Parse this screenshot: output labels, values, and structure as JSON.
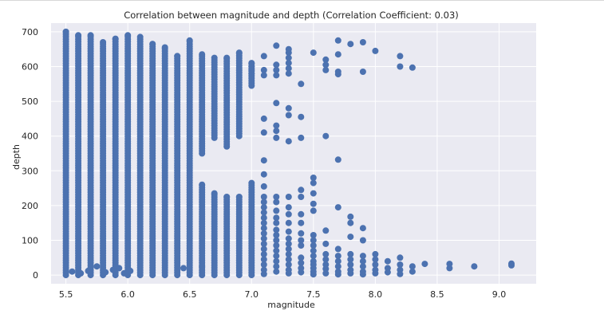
{
  "chart_data": {
    "type": "scatter",
    "title": "Correlation between magnitude and depth (Correlation Coefficient: 0.03)",
    "xlabel": "magnitude",
    "ylabel": "depth",
    "xlim": [
      5.38,
      9.3
    ],
    "ylim": [
      -25,
      725
    ],
    "x_ticks": [
      5.5,
      6.0,
      6.5,
      7.0,
      7.5,
      8.0,
      8.5,
      9.0
    ],
    "x_tick_labels": [
      "5.5",
      "6.0",
      "6.5",
      "7.0",
      "7.5",
      "8.0",
      "8.5",
      "9.0"
    ],
    "y_ticks": [
      0,
      100,
      200,
      300,
      400,
      500,
      600,
      700
    ],
    "y_tick_labels": [
      "0",
      "100",
      "200",
      "300",
      "400",
      "500",
      "600",
      "700"
    ],
    "grid": true,
    "marker_color": "#4c72b0",
    "background_color": "#eaeaf2",
    "grid_color": "#ffffff",
    "columns": [
      {
        "x": 5.5,
        "ranges": [
          [
            0,
            700
          ]
        ]
      },
      {
        "x": 5.6,
        "ranges": [
          [
            0,
            690
          ]
        ]
      },
      {
        "x": 5.7,
        "ranges": [
          [
            0,
            690
          ]
        ]
      },
      {
        "x": 5.8,
        "ranges": [
          [
            0,
            670
          ]
        ]
      },
      {
        "x": 5.9,
        "ranges": [
          [
            0,
            680
          ]
        ]
      },
      {
        "x": 6.0,
        "ranges": [
          [
            0,
            690
          ]
        ]
      },
      {
        "x": 6.1,
        "ranges": [
          [
            0,
            685
          ]
        ]
      },
      {
        "x": 6.2,
        "ranges": [
          [
            0,
            665
          ]
        ]
      },
      {
        "x": 6.3,
        "ranges": [
          [
            0,
            655
          ]
        ]
      },
      {
        "x": 6.4,
        "ranges": [
          [
            0,
            630
          ]
        ]
      },
      {
        "x": 6.5,
        "ranges": [
          [
            0,
            675
          ]
        ]
      },
      {
        "x": 6.6,
        "ranges": [
          [
            0,
            260
          ],
          [
            350,
            635
          ]
        ]
      },
      {
        "x": 6.7,
        "ranges": [
          [
            0,
            235
          ],
          [
            395,
            625
          ]
        ]
      },
      {
        "x": 6.8,
        "ranges": [
          [
            0,
            225
          ],
          [
            370,
            625
          ]
        ]
      },
      {
        "x": 6.9,
        "ranges": [
          [
            0,
            225
          ],
          [
            400,
            640
          ]
        ]
      },
      {
        "x": 7.0,
        "ranges": [
          [
            0,
            265
          ],
          [
            545,
            610
          ]
        ]
      }
    ],
    "points": [
      [
        5.55,
        10
      ],
      [
        5.62,
        5
      ],
      [
        5.68,
        12
      ],
      [
        5.75,
        25
      ],
      [
        5.82,
        8
      ],
      [
        5.88,
        15
      ],
      [
        5.93,
        20
      ],
      [
        5.97,
        5
      ],
      [
        6.02,
        12
      ],
      [
        6.45,
        20
      ],
      [
        6.6,
        25
      ],
      [
        7.0,
        600
      ],
      [
        7.0,
        590
      ],
      [
        7.0,
        580
      ],
      [
        7.1,
        630
      ],
      [
        7.1,
        590
      ],
      [
        7.1,
        575
      ],
      [
        7.1,
        450
      ],
      [
        7.1,
        410
      ],
      [
        7.1,
        330
      ],
      [
        7.1,
        290
      ],
      [
        7.1,
        255
      ],
      [
        7.1,
        225
      ],
      [
        7.1,
        210
      ],
      [
        7.1,
        195
      ],
      [
        7.1,
        180
      ],
      [
        7.1,
        165
      ],
      [
        7.1,
        150
      ],
      [
        7.1,
        135
      ],
      [
        7.1,
        120
      ],
      [
        7.1,
        105
      ],
      [
        7.1,
        90
      ],
      [
        7.1,
        75
      ],
      [
        7.1,
        60
      ],
      [
        7.1,
        45
      ],
      [
        7.1,
        30
      ],
      [
        7.1,
        15
      ],
      [
        7.1,
        3
      ],
      [
        7.2,
        660
      ],
      [
        7.2,
        605
      ],
      [
        7.2,
        590
      ],
      [
        7.2,
        575
      ],
      [
        7.2,
        495
      ],
      [
        7.2,
        430
      ],
      [
        7.2,
        415
      ],
      [
        7.2,
        395
      ],
      [
        7.2,
        225
      ],
      [
        7.2,
        210
      ],
      [
        7.2,
        185
      ],
      [
        7.2,
        165
      ],
      [
        7.2,
        150
      ],
      [
        7.2,
        130
      ],
      [
        7.2,
        115
      ],
      [
        7.2,
        100
      ],
      [
        7.2,
        85
      ],
      [
        7.2,
        70
      ],
      [
        7.2,
        55
      ],
      [
        7.2,
        40
      ],
      [
        7.2,
        25
      ],
      [
        7.2,
        10
      ],
      [
        7.3,
        650
      ],
      [
        7.3,
        640
      ],
      [
        7.3,
        625
      ],
      [
        7.3,
        610
      ],
      [
        7.3,
        595
      ],
      [
        7.3,
        580
      ],
      [
        7.3,
        480
      ],
      [
        7.3,
        460
      ],
      [
        7.3,
        385
      ],
      [
        7.3,
        225
      ],
      [
        7.3,
        195
      ],
      [
        7.3,
        175
      ],
      [
        7.3,
        150
      ],
      [
        7.3,
        125
      ],
      [
        7.3,
        105
      ],
      [
        7.3,
        90
      ],
      [
        7.3,
        75
      ],
      [
        7.3,
        60
      ],
      [
        7.3,
        45
      ],
      [
        7.3,
        30
      ],
      [
        7.3,
        15
      ],
      [
        7.3,
        5
      ],
      [
        7.4,
        550
      ],
      [
        7.4,
        455
      ],
      [
        7.4,
        395
      ],
      [
        7.4,
        245
      ],
      [
        7.4,
        225
      ],
      [
        7.4,
        175
      ],
      [
        7.4,
        150
      ],
      [
        7.4,
        120
      ],
      [
        7.4,
        100
      ],
      [
        7.4,
        85
      ],
      [
        7.4,
        50
      ],
      [
        7.4,
        35
      ],
      [
        7.4,
        20
      ],
      [
        7.4,
        8
      ],
      [
        7.5,
        640
      ],
      [
        7.5,
        280
      ],
      [
        7.5,
        265
      ],
      [
        7.5,
        235
      ],
      [
        7.5,
        205
      ],
      [
        7.5,
        185
      ],
      [
        7.5,
        115
      ],
      [
        7.5,
        100
      ],
      [
        7.5,
        85
      ],
      [
        7.5,
        70
      ],
      [
        7.5,
        55
      ],
      [
        7.5,
        40
      ],
      [
        7.5,
        30
      ],
      [
        7.5,
        20
      ],
      [
        7.5,
        10
      ],
      [
        7.5,
        2
      ],
      [
        7.6,
        620
      ],
      [
        7.6,
        605
      ],
      [
        7.6,
        590
      ],
      [
        7.6,
        400
      ],
      [
        7.6,
        128
      ],
      [
        7.6,
        90
      ],
      [
        7.6,
        60
      ],
      [
        7.6,
        45
      ],
      [
        7.6,
        30
      ],
      [
        7.6,
        18
      ],
      [
        7.6,
        5
      ],
      [
        7.7,
        675
      ],
      [
        7.7,
        635
      ],
      [
        7.7,
        585
      ],
      [
        7.7,
        578
      ],
      [
        7.7,
        332
      ],
      [
        7.7,
        195
      ],
      [
        7.7,
        75
      ],
      [
        7.7,
        55
      ],
      [
        7.7,
        40
      ],
      [
        7.7,
        25
      ],
      [
        7.7,
        10
      ],
      [
        7.7,
        2
      ],
      [
        7.8,
        665
      ],
      [
        7.8,
        168
      ],
      [
        7.8,
        150
      ],
      [
        7.8,
        110
      ],
      [
        7.8,
        60
      ],
      [
        7.8,
        45
      ],
      [
        7.8,
        30
      ],
      [
        7.8,
        15
      ],
      [
        7.8,
        5
      ],
      [
        7.9,
        670
      ],
      [
        7.9,
        585
      ],
      [
        7.9,
        135
      ],
      [
        7.9,
        100
      ],
      [
        7.9,
        55
      ],
      [
        7.9,
        40
      ],
      [
        7.9,
        25
      ],
      [
        7.9,
        10
      ],
      [
        7.9,
        2
      ],
      [
        8.0,
        645
      ],
      [
        8.0,
        60
      ],
      [
        8.0,
        45
      ],
      [
        8.0,
        30
      ],
      [
        8.0,
        15
      ],
      [
        8.0,
        5
      ],
      [
        8.1,
        40
      ],
      [
        8.1,
        20
      ],
      [
        8.1,
        8
      ],
      [
        8.2,
        630
      ],
      [
        8.2,
        600
      ],
      [
        8.2,
        50
      ],
      [
        8.2,
        30
      ],
      [
        8.2,
        15
      ],
      [
        8.2,
        3
      ],
      [
        8.3,
        597
      ],
      [
        8.3,
        25
      ],
      [
        8.3,
        10
      ],
      [
        8.4,
        32
      ],
      [
        8.6,
        32
      ],
      [
        8.6,
        20
      ],
      [
        8.8,
        25
      ],
      [
        9.1,
        33
      ],
      [
        9.1,
        28
      ]
    ]
  }
}
